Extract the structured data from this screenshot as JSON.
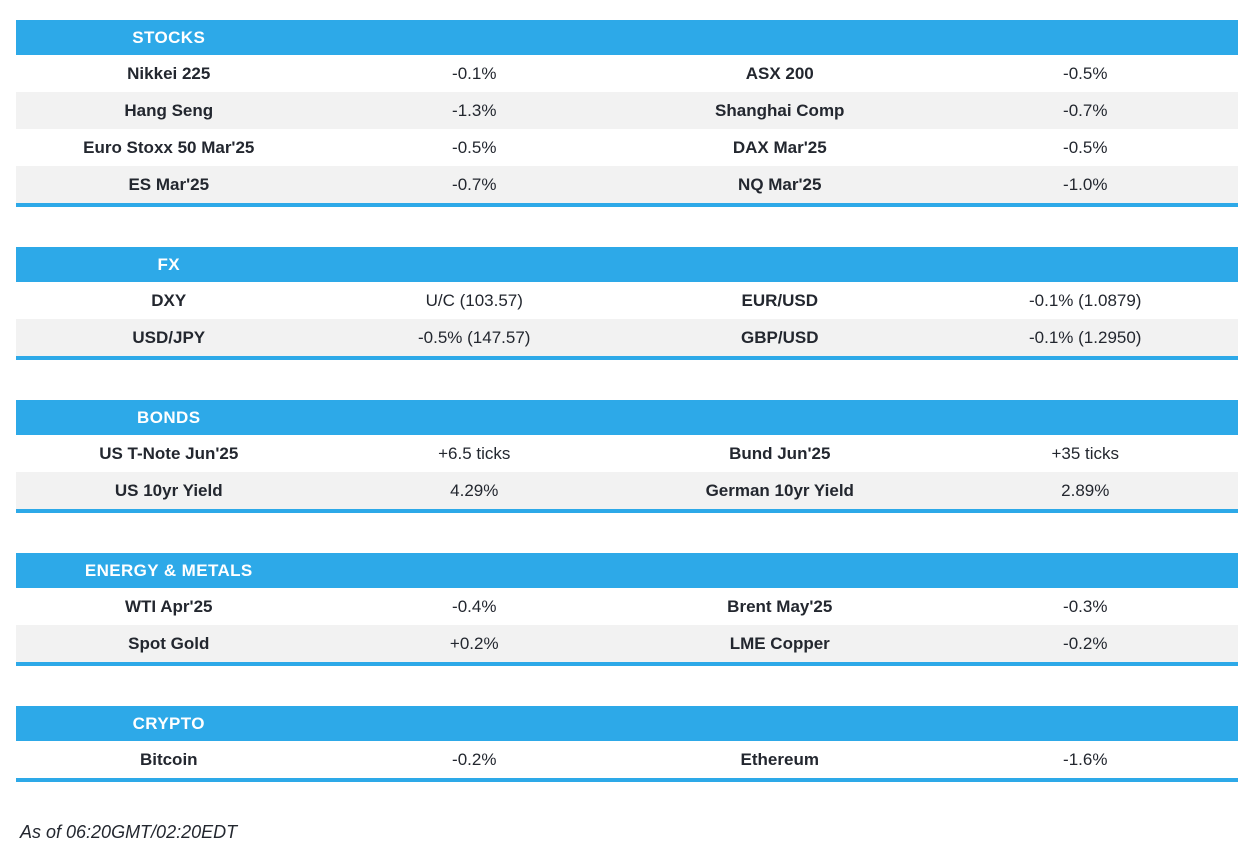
{
  "colors": {
    "accent": "#2DA9E8",
    "row_alt": "#F2F2F2",
    "text": "#23272F",
    "header_text": "#FFFFFF"
  },
  "sections": [
    {
      "title": "STOCKS",
      "rows": [
        {
          "cells": [
            "Nikkei 225",
            "-0.1%",
            "ASX 200",
            "-0.5%"
          ]
        },
        {
          "cells": [
            "Hang Seng",
            "-1.3%",
            "Shanghai Comp",
            "-0.7%"
          ]
        },
        {
          "cells": [
            "Euro Stoxx 50 Mar'25",
            "-0.5%",
            "DAX Mar'25",
            "-0.5%"
          ]
        },
        {
          "cells": [
            "ES Mar'25",
            "-0.7%",
            "NQ Mar'25",
            "-1.0%"
          ]
        }
      ]
    },
    {
      "title": "FX",
      "rows": [
        {
          "cells": [
            "DXY",
            "U/C (103.57)",
            "EUR/USD",
            "-0.1% (1.0879)"
          ]
        },
        {
          "cells": [
            "USD/JPY",
            "-0.5% (147.57)",
            "GBP/USD",
            "-0.1% (1.2950)"
          ]
        }
      ]
    },
    {
      "title": "BONDS",
      "rows": [
        {
          "cells": [
            "US T-Note Jun'25",
            "+6.5 ticks",
            "Bund Jun'25",
            "+35 ticks"
          ]
        },
        {
          "cells": [
            "US 10yr Yield",
            "4.29%",
            "German 10yr Yield",
            "2.89%"
          ]
        }
      ]
    },
    {
      "title": "ENERGY & METALS",
      "rows": [
        {
          "cells": [
            "WTI Apr'25",
            "-0.4%",
            "Brent May'25",
            "-0.3%"
          ]
        },
        {
          "cells": [
            "Spot Gold",
            "+0.2%",
            "LME Copper",
            "-0.2%"
          ]
        }
      ]
    },
    {
      "title": "CRYPTO",
      "rows": [
        {
          "cells": [
            "Bitcoin",
            "-0.2%",
            "Ethereum",
            "-1.6%"
          ]
        }
      ]
    }
  ],
  "footer": {
    "as_of": "As of 06:20GMT/02:20EDT"
  }
}
